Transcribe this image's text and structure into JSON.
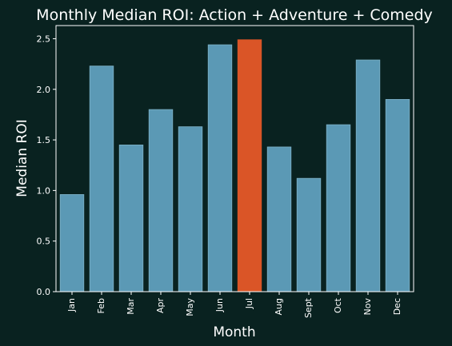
{
  "colors": {
    "background": "#092220",
    "bar": "#5b99b5",
    "bar_edge": "#7fb3c8",
    "highlight": "#da5527",
    "text": "#ffffff"
  },
  "chart_data": {
    "type": "bar",
    "title": "Monthly Median ROI: Action + Adventure + Comedy",
    "xlabel": "Month",
    "ylabel": "Median ROI",
    "categories": [
      "Jan",
      "Feb",
      "Mar",
      "Apr",
      "May",
      "Jun",
      "Jul",
      "Aug",
      "Sept",
      "Oct",
      "Nov",
      "Dec"
    ],
    "values": [
      0.96,
      2.23,
      1.45,
      1.8,
      1.63,
      2.44,
      2.49,
      1.43,
      1.12,
      1.65,
      2.29,
      1.9
    ],
    "highlight_category": "Jul",
    "ylim": [
      0,
      2.63
    ],
    "yticks": [
      0.0,
      0.5,
      1.0,
      1.5,
      2.0,
      2.5
    ],
    "ytick_labels": [
      "0.0",
      "0.5",
      "1.0",
      "1.5",
      "2.0",
      "2.5"
    ],
    "grid": false,
    "legend": "none"
  }
}
